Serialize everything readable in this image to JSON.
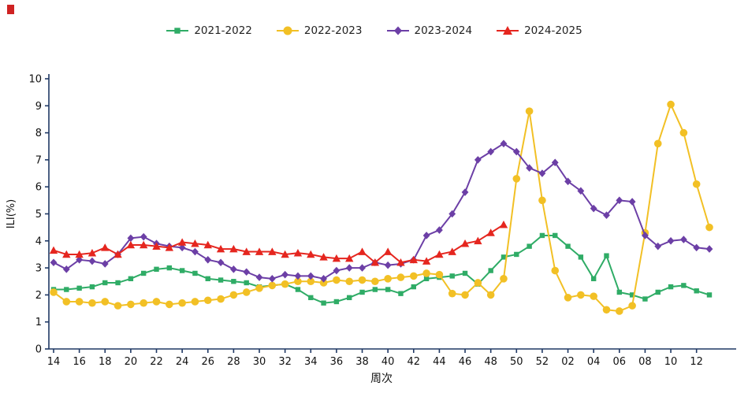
{
  "colors": {
    "axis": "#1f3864",
    "text": "#111111",
    "background": "#ffffff",
    "corner_mark": "#cf2222"
  },
  "chart_data": {
    "type": "line",
    "title": "",
    "xlabel": "周次",
    "ylabel": "ILI(%)",
    "ylim": [
      0,
      10
    ],
    "y_ticks": [
      0,
      1,
      2,
      3,
      4,
      5,
      6,
      7,
      8,
      9,
      10
    ],
    "grid": false,
    "legend_position": "top-center",
    "x_categories": [
      "14",
      "15",
      "16",
      "17",
      "18",
      "19",
      "20",
      "21",
      "22",
      "23",
      "24",
      "25",
      "26",
      "27",
      "28",
      "29",
      "30",
      "31",
      "32",
      "33",
      "34",
      "35",
      "36",
      "37",
      "38",
      "39",
      "40",
      "41",
      "42",
      "43",
      "44",
      "45",
      "46",
      "47",
      "48",
      "49",
      "50",
      "51",
      "52",
      "01",
      "02",
      "03",
      "04",
      "05",
      "06",
      "07",
      "08",
      "09",
      "10",
      "11",
      "12",
      "13"
    ],
    "series": [
      {
        "name": "2021-2022",
        "color": "#2fac66",
        "marker": "square",
        "values": [
          2.2,
          2.2,
          2.25,
          2.3,
          2.45,
          2.45,
          2.6,
          2.8,
          2.95,
          3.0,
          2.9,
          2.8,
          2.6,
          2.55,
          2.5,
          2.45,
          2.3,
          2.35,
          2.4,
          2.2,
          1.9,
          1.7,
          1.75,
          1.9,
          2.1,
          2.2,
          2.2,
          2.05,
          2.3,
          2.6,
          2.65,
          2.7,
          2.8,
          2.4,
          2.9,
          3.4,
          3.5,
          3.8,
          4.2,
          4.2,
          3.8,
          3.4,
          2.6,
          3.45,
          2.1,
          2.0,
          1.85,
          2.1,
          2.3,
          2.35,
          2.15,
          2.0
        ]
      },
      {
        "name": "2022-2023",
        "color": "#f2c025",
        "marker": "circle",
        "values": [
          2.1,
          1.75,
          1.75,
          1.7,
          1.75,
          1.6,
          1.65,
          1.7,
          1.75,
          1.65,
          1.7,
          1.75,
          1.8,
          1.85,
          2.0,
          2.1,
          2.25,
          2.35,
          2.4,
          2.5,
          2.5,
          2.45,
          2.55,
          2.5,
          2.55,
          2.5,
          2.6,
          2.65,
          2.7,
          2.8,
          2.75,
          2.05,
          2.0,
          2.45,
          2.0,
          2.6,
          6.3,
          8.8,
          5.5,
          2.9,
          1.9,
          2.0,
          1.95,
          1.45,
          1.4,
          1.6,
          4.3,
          7.6,
          9.05,
          8.0,
          6.1,
          4.5
        ]
      },
      {
        "name": "2023-2024",
        "color": "#6c3fa6",
        "marker": "diamond",
        "values": [
          3.2,
          2.95,
          3.3,
          3.25,
          3.15,
          3.5,
          4.1,
          4.15,
          3.9,
          3.8,
          3.75,
          3.6,
          3.3,
          3.2,
          2.95,
          2.85,
          2.65,
          2.6,
          2.75,
          2.7,
          2.7,
          2.6,
          2.9,
          3.0,
          3.0,
          3.2,
          3.1,
          3.15,
          3.3,
          4.2,
          4.4,
          5.0,
          5.8,
          7.0,
          7.3,
          7.6,
          7.3,
          6.7,
          6.5,
          6.9,
          6.2,
          5.85,
          5.2,
          4.95,
          5.5,
          5.45,
          4.2,
          3.8,
          4.0,
          4.05,
          3.75,
          3.7
        ]
      },
      {
        "name": "2024-2025",
        "color": "#e5261f",
        "marker": "triangle",
        "values": [
          3.65,
          3.5,
          3.5,
          3.55,
          3.75,
          3.5,
          3.85,
          3.85,
          3.8,
          3.75,
          3.95,
          3.9,
          3.85,
          3.7,
          3.7,
          3.6,
          3.6,
          3.6,
          3.5,
          3.55,
          3.5,
          3.4,
          3.35,
          3.35,
          3.6,
          3.2,
          3.6,
          3.2,
          3.3,
          3.25,
          3.5,
          3.6,
          3.9,
          4.0,
          4.3,
          4.6,
          null,
          null,
          null,
          null,
          null,
          null,
          null,
          null,
          null,
          null,
          null,
          null,
          null,
          null,
          null,
          null
        ]
      }
    ]
  }
}
